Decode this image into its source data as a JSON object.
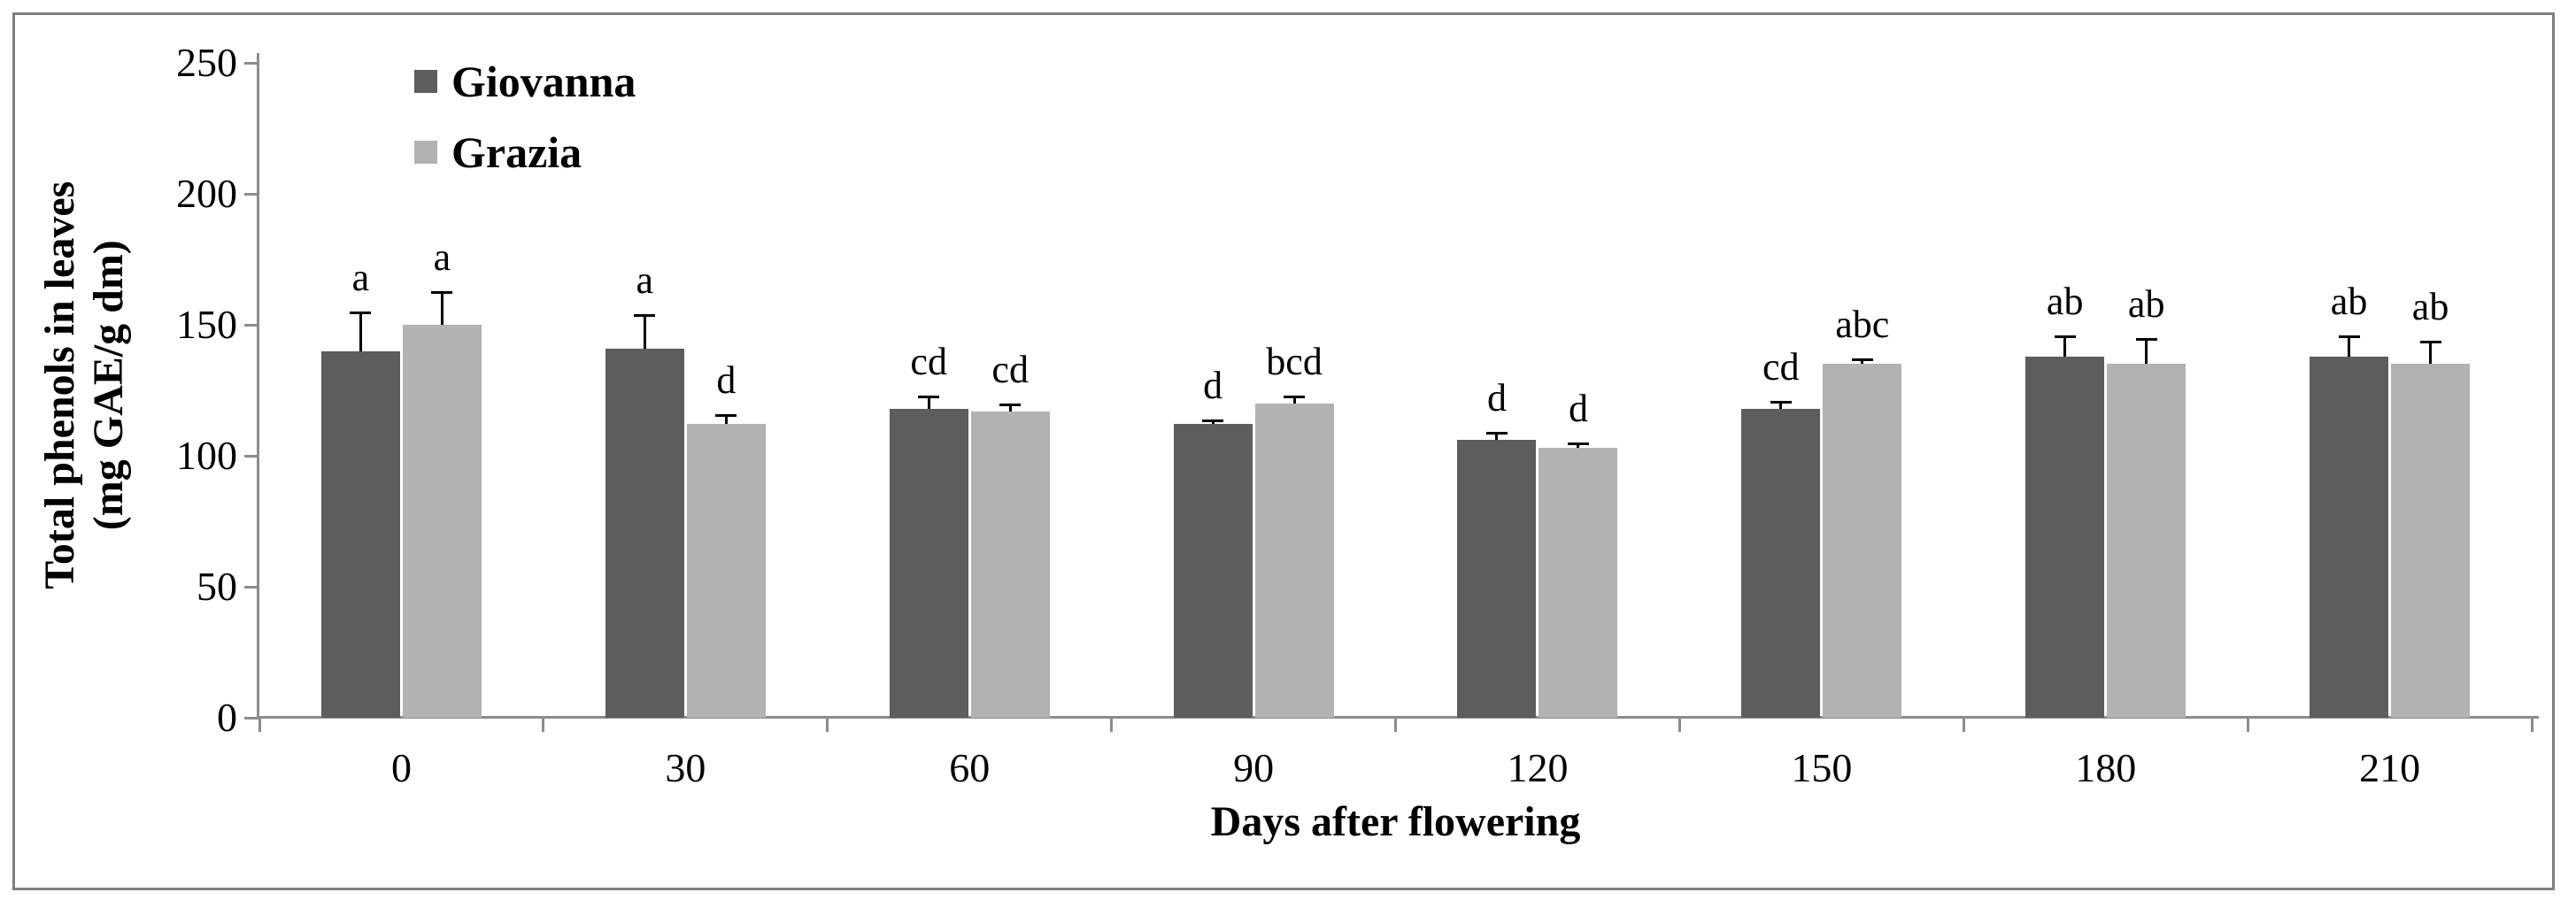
{
  "figure": {
    "y_axis_title_line1": "Total phenols in leaves",
    "y_axis_title_line2": "(mg GAE/g dm)",
    "x_axis_title": "Days after flowering"
  },
  "legend": {
    "items": [
      {
        "label": "Giovanna",
        "color": "#5d5d5d"
      },
      {
        "label": "Grazia",
        "color": "#b2b2b2"
      }
    ],
    "position": "top-left-inside"
  },
  "colors": {
    "axis": "#8c8c8c",
    "frame_border": "#7f7f7f",
    "error_bar": "#000000",
    "text": "#000000",
    "background": "#ffffff"
  },
  "chart_data": {
    "type": "bar",
    "title": "",
    "xlabel": "Days after flowering",
    "ylabel": "Total phenols in leaves (mg GAE/g dm)",
    "categories": [
      "0",
      "30",
      "60",
      "90",
      "120",
      "150",
      "180",
      "210"
    ],
    "ylim": [
      0,
      250
    ],
    "y_ticks": [
      0,
      50,
      100,
      150,
      200,
      250
    ],
    "grid": "off",
    "legend_position": "top-left-inside",
    "error_bars": "plus-direction-with-cap",
    "series": [
      {
        "name": "Giovanna",
        "color": "#5d5d5d",
        "values": [
          140,
          141,
          118,
          112,
          106,
          118,
          138,
          138
        ],
        "errors": [
          15,
          13,
          5,
          2,
          3,
          3,
          8,
          8
        ],
        "letters": [
          "a",
          "a",
          "cd",
          "d",
          "d",
          "cd",
          "ab",
          "ab"
        ]
      },
      {
        "name": "Grazia",
        "color": "#b2b2b2",
        "values": [
          150,
          112,
          117,
          120,
          103,
          135,
          135,
          135
        ],
        "errors": [
          13,
          4,
          3,
          3,
          2,
          2,
          10,
          9
        ],
        "letters": [
          "a",
          "d",
          "cd",
          "bcd",
          "d",
          "abc",
          "ab",
          "ab"
        ]
      }
    ]
  }
}
